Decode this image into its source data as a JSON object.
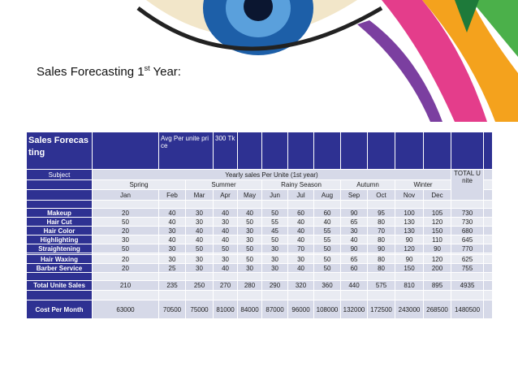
{
  "title": {
    "text": "Sales Forecasting 1",
    "sup": "st",
    "after": " Year:"
  },
  "table": {
    "corner": "Sales Forecasting",
    "price_label": "Avg Per unite price",
    "price": "300 Tk",
    "subject": "Subject",
    "yearly": "Yearly sales Per Unite (1st year)",
    "total": "TOTAL Unite",
    "seasons": [
      "Spring",
      "Summer",
      "Rainy Season",
      "Autumn",
      "Winter"
    ],
    "months": [
      "Jan",
      "Feb",
      "Mar",
      "Apr",
      "May",
      "Jun",
      "Jul",
      "Aug",
      "Sep",
      "Oct",
      "Nov",
      "Dec"
    ],
    "rows": [
      {
        "label": "Makeup",
        "values": [
          20,
          40,
          30,
          40,
          40,
          50,
          60,
          60,
          90,
          95,
          100,
          105
        ],
        "total": 730
      },
      {
        "label": "Hair Cut",
        "values": [
          50,
          40,
          30,
          30,
          50,
          55,
          40,
          40,
          65,
          80,
          130,
          120
        ],
        "total": 730
      },
      {
        "label": "Hair Color",
        "values": [
          20,
          30,
          40,
          40,
          30,
          45,
          40,
          55,
          30,
          70,
          130,
          150
        ],
        "total": 680
      },
      {
        "label": "Highlighting",
        "values": [
          30,
          40,
          40,
          40,
          30,
          50,
          40,
          55,
          40,
          80,
          90,
          110
        ],
        "total": 645
      },
      {
        "label": "Straightening",
        "values": [
          50,
          30,
          50,
          50,
          50,
          30,
          70,
          50,
          90,
          90,
          120,
          90
        ],
        "total": 770
      },
      {
        "label": "Hair Waxing",
        "values": [
          20,
          30,
          30,
          30,
          50,
          30,
          30,
          50,
          65,
          80,
          90,
          120
        ],
        "total": 625
      },
      {
        "label": "Barber Service",
        "values": [
          20,
          25,
          30,
          40,
          30,
          30,
          40,
          50,
          60,
          80,
          150,
          200
        ],
        "total": 755
      }
    ],
    "total_row": {
      "label": "Total Unite Sales",
      "values": [
        210,
        235,
        250,
        270,
        280,
        290,
        320,
        360,
        440,
        575,
        810,
        895
      ],
      "total": 4935
    },
    "cost_row": {
      "label": "Cost Per Month",
      "values": [
        63000,
        70500,
        75000,
        81000,
        84000,
        87000,
        96000,
        108000,
        132000,
        172500,
        243000,
        268500
      ],
      "total": 1480500
    }
  }
}
